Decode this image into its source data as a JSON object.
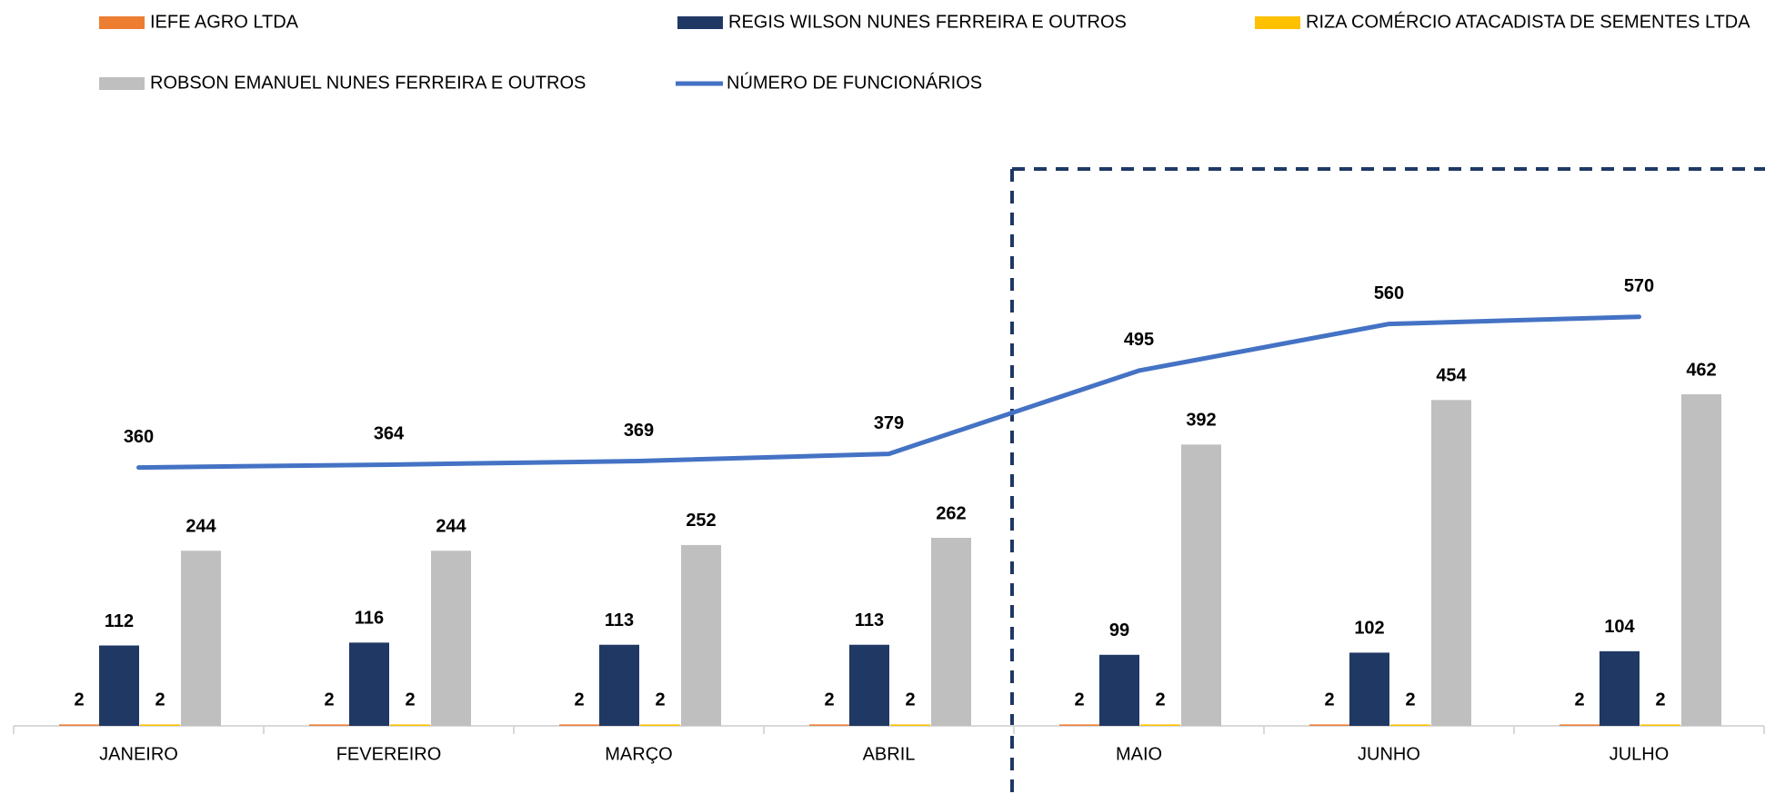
{
  "chart_data": {
    "type": "bar",
    "categories": [
      "JANEIRO",
      "FEVEREIRO",
      "MARÇO",
      "ABRIL",
      "MAIO",
      "JUNHO",
      "JULHO"
    ],
    "series": [
      {
        "name": "IEFE AGRO LTDA",
        "type": "bar",
        "color": "#ed7d31",
        "values": [
          2,
          2,
          2,
          2,
          2,
          2,
          2
        ]
      },
      {
        "name": "REGIS WILSON NUNES FERREIRA E OUTROS",
        "type": "bar",
        "color": "#203864",
        "values": [
          112,
          116,
          113,
          113,
          99,
          102,
          104
        ]
      },
      {
        "name": "RIZA COMÉRCIO ATACADISTA DE SEMENTES LTDA",
        "type": "bar",
        "color": "#ffc000",
        "values": [
          2,
          2,
          2,
          2,
          2,
          2,
          2
        ]
      },
      {
        "name": "ROBSON EMANUEL NUNES FERREIRA E OUTROS",
        "type": "bar",
        "color": "#bfbfbf",
        "values": [
          244,
          244,
          252,
          262,
          392,
          454,
          462
        ]
      },
      {
        "name": "NÚMERO DE FUNCIONÁRIOS",
        "type": "line",
        "color": "#4472c4",
        "values": [
          360,
          364,
          369,
          379,
          495,
          560,
          570
        ]
      }
    ],
    "ylim": [
      0,
      800
    ]
  }
}
